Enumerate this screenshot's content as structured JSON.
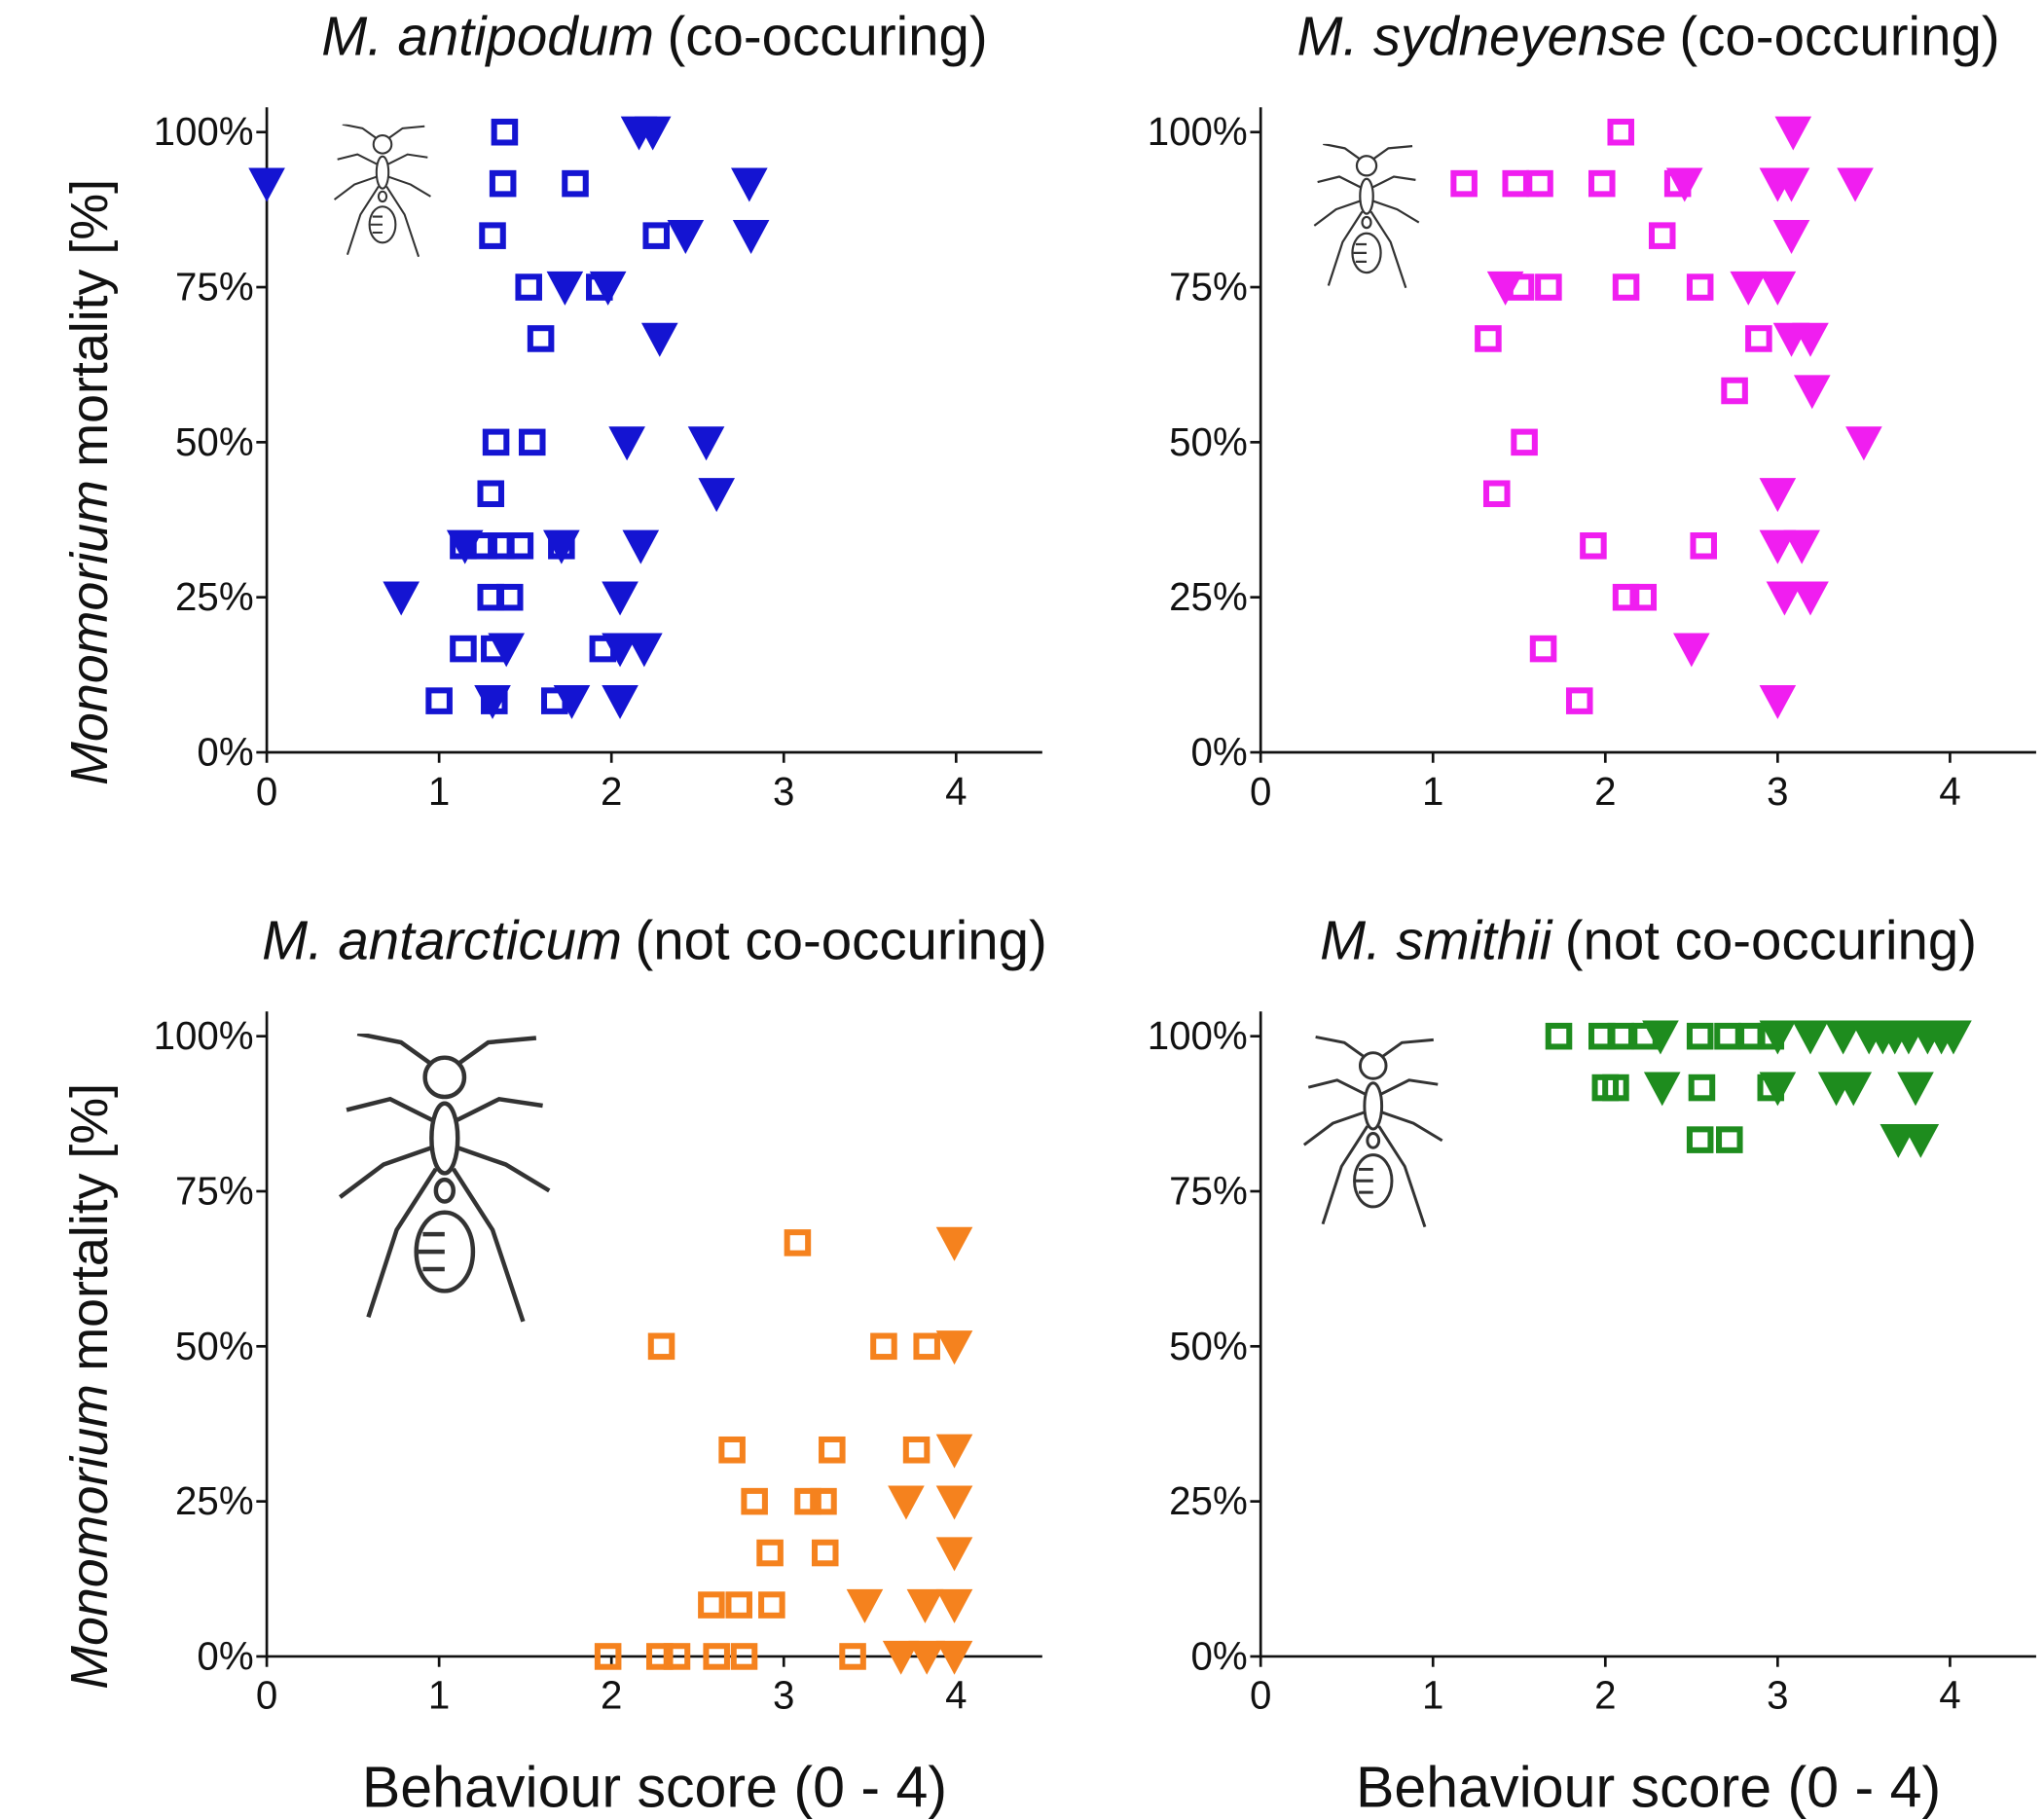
{
  "chart_data": [
    {
      "type": "scatter",
      "title_species": "M. antipodum",
      "title_note": "(co-occuring)",
      "ylabel_species": "Monomorium",
      "ylabel_note": "mortality [%]",
      "xlim": [
        0,
        4.5
      ],
      "ylim": [
        0,
        104
      ],
      "xticks": [
        0,
        1,
        2,
        3,
        4
      ],
      "yticks": [
        {
          "value": 0,
          "label": "0%"
        },
        {
          "value": 25,
          "label": "25%"
        },
        {
          "value": 50,
          "label": "50%"
        },
        {
          "value": 75,
          "label": "75%"
        },
        {
          "value": 100,
          "label": "100%"
        }
      ],
      "series": [
        {
          "marker": "square",
          "color": "#1414d2",
          "x": [
            1.38,
            1.37,
            1.79,
            1.31,
            2.26,
            1.52,
            1.93,
            1.59,
            1.33,
            1.54,
            1.3,
            1.14,
            1.26,
            1.36,
            1.47,
            1.71,
            1.3,
            1.41,
            1.14,
            1.32,
            1.95,
            1.0,
            1.32,
            1.67
          ],
          "y": [
            100,
            91.7,
            91.7,
            83.3,
            83.3,
            75,
            75,
            66.7,
            50,
            50,
            41.7,
            33.3,
            33.3,
            33.3,
            33.3,
            33.3,
            25,
            25,
            16.7,
            16.7,
            16.7,
            8.3,
            8.3,
            8.3
          ]
        },
        {
          "marker": "triangle",
          "color": "#1414d2",
          "x": [
            0,
            2.16,
            2.24,
            2.8,
            2.43,
            2.81,
            1.73,
            1.98,
            2.28,
            2.09,
            2.55,
            2.61,
            1.15,
            1.71,
            2.17,
            0.78,
            2.05,
            1.39,
            2.05,
            2.19,
            1.31,
            1.77,
            2.05
          ],
          "y": [
            91.7,
            100,
            100,
            91.7,
            83.3,
            83.3,
            75,
            75,
            66.7,
            50,
            50,
            41.7,
            33.3,
            33.3,
            33.3,
            25,
            25,
            16.7,
            16.7,
            16.7,
            8.3,
            8.3,
            8.3
          ]
        }
      ]
    },
    {
      "type": "scatter",
      "title_species": "M. sydneyense",
      "title_note": "(co-occuring)",
      "xlim": [
        0,
        4.5
      ],
      "ylim": [
        0,
        104
      ],
      "xticks": [
        0,
        1,
        2,
        3,
        4
      ],
      "yticks": [
        {
          "value": 0,
          "label": "0%"
        },
        {
          "value": 25,
          "label": "25%"
        },
        {
          "value": 50,
          "label": "50%"
        },
        {
          "value": 75,
          "label": "75%"
        },
        {
          "value": 100,
          "label": "100%"
        }
      ],
      "series": [
        {
          "marker": "square",
          "color": "#f01ef0",
          "x": [
            2.09,
            1.18,
            1.48,
            1.62,
            1.98,
            2.42,
            2.33,
            1.51,
            1.67,
            2.12,
            2.55,
            1.32,
            2.89,
            2.75,
            1.53,
            1.37,
            1.93,
            2.57,
            2.12,
            2.22,
            1.64,
            1.85
          ],
          "y": [
            100,
            91.7,
            91.7,
            91.7,
            91.7,
            91.7,
            83.3,
            75,
            75,
            75,
            75,
            66.7,
            66.7,
            58.3,
            50,
            41.7,
            33.3,
            33.3,
            25,
            25,
            16.7,
            8.3
          ]
        },
        {
          "marker": "triangle",
          "color": "#f01ef0",
          "x": [
            3.09,
            2.46,
            3.0,
            3.08,
            3.45,
            3.08,
            1.42,
            2.83,
            3.0,
            3.08,
            3.19,
            3.2,
            3.5,
            3.0,
            3.0,
            3.14,
            3.04,
            3.19,
            2.5,
            3.0
          ],
          "y": [
            100,
            91.7,
            91.7,
            91.7,
            91.7,
            83.3,
            75,
            75,
            75,
            66.7,
            66.7,
            58.3,
            50,
            41.7,
            33.3,
            33.3,
            25,
            25,
            16.7,
            8.3
          ]
        }
      ]
    },
    {
      "type": "scatter",
      "title_species": "M. antarcticum",
      "title_note": "(not co-occuring)",
      "ylabel_species": "Monomorium",
      "ylabel_note": "mortality [%]",
      "xlabel": "Behaviour score (0 - 4)",
      "xlim": [
        0,
        4.5
      ],
      "ylim": [
        0,
        104
      ],
      "xticks": [
        0,
        1,
        2,
        3,
        4
      ],
      "yticks": [
        {
          "value": 0,
          "label": "0%"
        },
        {
          "value": 25,
          "label": "25%"
        },
        {
          "value": 50,
          "label": "50%"
        },
        {
          "value": 75,
          "label": "75%"
        },
        {
          "value": 100,
          "label": "100%"
        }
      ],
      "series": [
        {
          "marker": "square",
          "color": "#f5821e",
          "x": [
            3.08,
            2.29,
            3.58,
            3.83,
            2.7,
            3.28,
            3.77,
            2.83,
            3.14,
            3.23,
            2.92,
            3.24,
            2.58,
            2.74,
            2.93,
            1.98,
            2.28,
            2.38,
            2.61,
            2.77,
            3.4
          ],
          "y": [
            66.7,
            50,
            50,
            50,
            33.3,
            33.3,
            33.3,
            25,
            25,
            25,
            16.7,
            16.7,
            8.3,
            8.3,
            8.3,
            0,
            0,
            0,
            0,
            0,
            0
          ]
        },
        {
          "marker": "triangle",
          "color": "#f5821e",
          "x": [
            3.99,
            3.99,
            3.99,
            3.71,
            3.99,
            3.99,
            3.47,
            3.82,
            3.99,
            3.68,
            3.83,
            3.99
          ],
          "y": [
            66.7,
            50,
            33.3,
            25,
            25,
            16.7,
            8.3,
            8.3,
            8.3,
            0,
            0,
            0
          ]
        }
      ]
    },
    {
      "type": "scatter",
      "title_species": "M. smithii",
      "title_note": "(not co-occuring)",
      "xlabel": "Behaviour score (0 - 4)",
      "xlim": [
        0,
        4.5
      ],
      "ylim": [
        0,
        104
      ],
      "xticks": [
        0,
        1,
        2,
        3,
        4
      ],
      "yticks": [
        {
          "value": 0,
          "label": "0%"
        },
        {
          "value": 25,
          "label": "25%"
        },
        {
          "value": 50,
          "label": "50%"
        },
        {
          "value": 75,
          "label": "75%"
        },
        {
          "value": 100,
          "label": "100%"
        }
      ],
      "series": [
        {
          "marker": "square",
          "color": "#1e8c1e",
          "x": [
            1.73,
            1.98,
            2.09,
            2.23,
            2.55,
            2.71,
            2.85,
            2.96,
            2.0,
            2.06,
            2.56,
            2.96,
            2.55,
            2.72
          ],
          "y": [
            100,
            100,
            100,
            100,
            100,
            100,
            100,
            100,
            91.7,
            91.7,
            91.7,
            91.7,
            83.3,
            83.3
          ]
        },
        {
          "marker": "triangle",
          "color": "#1e8c1e",
          "x": [
            2.32,
            3.0,
            3.19,
            3.38,
            3.53,
            3.61,
            3.68,
            3.76,
            3.87,
            3.95,
            4.02,
            2.33,
            3.0,
            3.34,
            3.44,
            3.8,
            3.7,
            3.83
          ],
          "y": [
            100,
            100,
            100,
            100,
            100,
            100,
            100,
            100,
            100,
            100,
            100,
            91.7,
            91.7,
            91.7,
            91.7,
            91.7,
            83.3,
            83.3
          ]
        }
      ]
    }
  ]
}
